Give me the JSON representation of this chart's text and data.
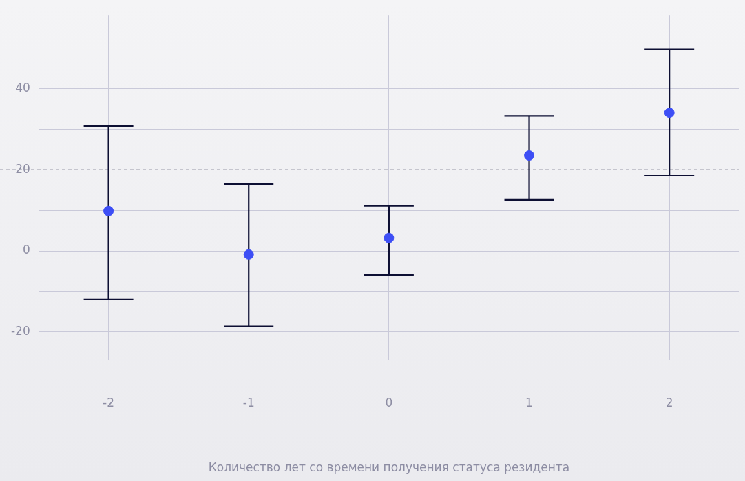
{
  "chart_data": {
    "type": "scatter",
    "xlabel": "Количество лет со времени получения статуса резидента",
    "x": [
      -2,
      -1,
      0,
      1,
      2
    ],
    "series": [
      {
        "color": "#3d4ef5",
        "values": [
          9.8,
          -0.9,
          3.2,
          23.5,
          34.0
        ],
        "errors": [
          [
            -12.0,
            30.7
          ],
          [
            -18.6,
            16.5
          ],
          [
            -5.9,
            11.1
          ],
          [
            12.6,
            33.2
          ],
          [
            18.5,
            49.6
          ]
        ]
      }
    ],
    "xlim": [
      -2.5,
      2.5
    ],
    "xticks": [
      -2,
      -1,
      0,
      1,
      2
    ],
    "ylim": [
      -27,
      58
    ],
    "yticks": [
      -20,
      {
        "value": -10,
        "label": null
      },
      0,
      {
        "value": 10,
        "label": null
      },
      20,
      {
        "value": 30,
        "label": null
      },
      40,
      {
        "value": 50,
        "label": null
      }
    ],
    "ref_lines": [
      {
        "axis": "y",
        "value": 20,
        "color": "#9a9aa8",
        "line_style": "dashed"
      }
    ],
    "grid": true,
    "legend": false,
    "marker": "circle"
  }
}
